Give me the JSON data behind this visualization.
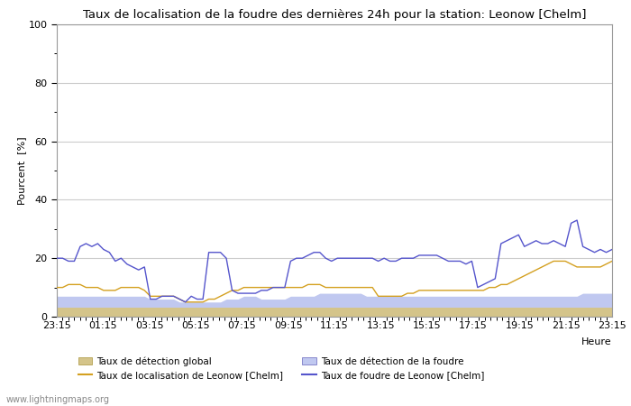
{
  "title": "Taux de localisation de la foudre des dernières 24h pour la station: Leonow [Chelm]",
  "xlabel": "Heure",
  "ylabel": "Pourcent  [%]",
  "watermark": "www.lightningmaps.org",
  "ylim": [
    0,
    100
  ],
  "yticks": [
    0,
    20,
    40,
    60,
    80,
    100
  ],
  "yticks_minor": [
    10,
    30,
    50,
    70,
    90
  ],
  "x_labels": [
    "23:15",
    "01:15",
    "03:15",
    "05:15",
    "07:15",
    "09:15",
    "11:15",
    "13:15",
    "15:15",
    "17:15",
    "19:15",
    "21:15",
    "23:15"
  ],
  "bg_color": "#ffffff",
  "plot_bg_color": "#ffffff",
  "grid_color": "#cccccc",
  "detection_global_fill": "#d4c48a",
  "detection_foudre_fill": "#c0c8f0",
  "localisation_color": "#d4a020",
  "foudre_leonow_color": "#5555cc",
  "detection_global": [
    3,
    3,
    3,
    3,
    3,
    3,
    3,
    3,
    3,
    3,
    3,
    3,
    3,
    3,
    3,
    3,
    3,
    3,
    3,
    3,
    3,
    3,
    3,
    3,
    3,
    3,
    3,
    3,
    3,
    3,
    3,
    3,
    3,
    3,
    3,
    3,
    3,
    3,
    3,
    3,
    3,
    3,
    3,
    3,
    3,
    3,
    3,
    3,
    3,
    3,
    3,
    3,
    3,
    3,
    3,
    3,
    3,
    3,
    3,
    3,
    3,
    3,
    3,
    3,
    3,
    3,
    3,
    3,
    3,
    3,
    3,
    3,
    3,
    3,
    3,
    3,
    3,
    3,
    3,
    3,
    3,
    3,
    3,
    3,
    3,
    3,
    3,
    3,
    3,
    3,
    3,
    3,
    3,
    3,
    3,
    3
  ],
  "detection_foudre": [
    7,
    7,
    7,
    7,
    7,
    7,
    7,
    7,
    7,
    7,
    7,
    7,
    7,
    7,
    7,
    7,
    6,
    6,
    6,
    6,
    6,
    5,
    5,
    5,
    5,
    5,
    5,
    5,
    5,
    6,
    6,
    6,
    7,
    7,
    7,
    6,
    6,
    6,
    6,
    6,
    7,
    7,
    7,
    7,
    7,
    8,
    8,
    8,
    8,
    8,
    8,
    8,
    8,
    7,
    7,
    7,
    7,
    7,
    7,
    7,
    7,
    7,
    7,
    7,
    7,
    7,
    7,
    7,
    7,
    7,
    7,
    7,
    7,
    7,
    7,
    7,
    7,
    7,
    7,
    7,
    7,
    7,
    7,
    7,
    7,
    7,
    7,
    7,
    7,
    7,
    8,
    8,
    8,
    8,
    8,
    8
  ],
  "localisation_leonow": [
    10,
    10,
    11,
    11,
    11,
    10,
    10,
    10,
    9,
    9,
    9,
    10,
    10,
    10,
    10,
    9,
    7,
    7,
    7,
    7,
    7,
    6,
    5,
    5,
    5,
    5,
    6,
    6,
    7,
    8,
    9,
    9,
    10,
    10,
    10,
    10,
    10,
    10,
    10,
    10,
    10,
    10,
    10,
    11,
    11,
    11,
    10,
    10,
    10,
    10,
    10,
    10,
    10,
    10,
    10,
    7,
    7,
    7,
    7,
    7,
    8,
    8,
    9,
    9,
    9,
    9,
    9,
    9,
    9,
    9,
    9,
    9,
    9,
    9,
    10,
    10,
    11,
    11,
    12,
    13,
    14,
    15,
    16,
    17,
    18,
    19,
    19,
    19,
    18,
    17,
    17,
    17,
    17,
    17,
    18,
    19
  ],
  "foudre_leonow": [
    20,
    20,
    19,
    19,
    24,
    25,
    24,
    25,
    23,
    22,
    19,
    20,
    18,
    17,
    16,
    17,
    6,
    6,
    7,
    7,
    7,
    6,
    5,
    7,
    6,
    6,
    22,
    22,
    22,
    20,
    9,
    8,
    8,
    8,
    8,
    9,
    9,
    10,
    10,
    10,
    19,
    20,
    20,
    21,
    22,
    22,
    20,
    19,
    20,
    20,
    20,
    20,
    20,
    20,
    20,
    19,
    20,
    19,
    19,
    20,
    20,
    20,
    21,
    21,
    21,
    21,
    20,
    19,
    19,
    19,
    18,
    19,
    10,
    11,
    12,
    13,
    25,
    26,
    27,
    28,
    24,
    25,
    26,
    25,
    25,
    26,
    25,
    24,
    32,
    33,
    24,
    23,
    22,
    23,
    22,
    23
  ]
}
